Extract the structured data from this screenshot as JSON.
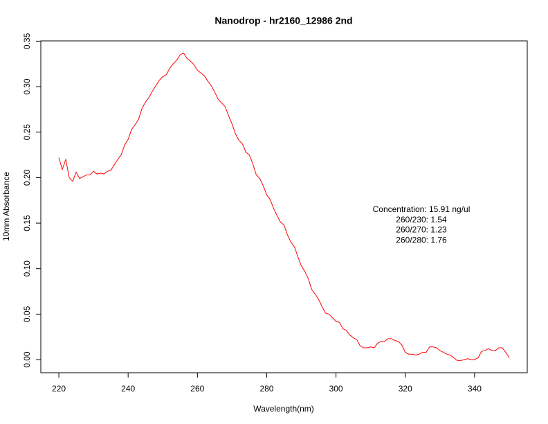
{
  "chart_data": {
    "type": "line",
    "title": "Nanodrop - hr2160_12986 2nd",
    "x_label": "Wavelength(nm)",
    "y_label": "10mm Absorbance",
    "annotation": [
      "Concentration: 15.91 ng/ul",
      "260/230: 1.54",
      "260/270: 1.23",
      "260/280: 1.76"
    ],
    "color": "#ff0000",
    "xlim": [
      214.8,
      355.2
    ],
    "xticks": [
      220,
      240,
      260,
      280,
      300,
      320,
      340
    ],
    "ylim": [
      -0.0144,
      0.3503
    ],
    "yticks": [
      {
        "value": 0,
        "label": "0.00"
      },
      0.05,
      {
        "value": 0.1,
        "label": "0.10"
      },
      0.15,
      {
        "value": 0.2,
        "label": "0.20"
      },
      0.25,
      {
        "value": 0.3,
        "label": "0.30"
      },
      0.35
    ],
    "x": [
      220,
      221,
      222,
      223,
      224,
      225,
      226,
      227,
      228,
      229,
      230,
      231,
      232,
      233,
      234,
      235,
      236,
      237,
      238,
      239,
      240,
      241,
      242,
      243,
      244,
      245,
      246,
      247,
      248,
      249,
      250,
      251,
      252,
      253,
      254,
      255,
      256,
      257,
      258,
      259,
      260,
      261,
      262,
      263,
      264,
      265,
      266,
      267,
      268,
      269,
      270,
      271,
      272,
      273,
      274,
      275,
      276,
      277,
      278,
      279,
      280,
      281,
      282,
      283,
      284,
      285,
      286,
      287,
      288,
      289,
      290,
      291,
      292,
      293,
      294,
      295,
      296,
      297,
      298,
      299,
      300,
      301,
      302,
      303,
      304,
      305,
      306,
      307,
      308,
      309,
      310,
      311,
      312,
      313,
      314,
      315,
      316,
      317,
      318,
      319,
      320,
      321,
      322,
      323,
      324,
      325,
      326,
      327,
      328,
      329,
      330,
      331,
      332,
      333,
      334,
      335,
      336,
      337,
      338,
      339,
      340,
      341,
      342,
      343,
      344,
      345,
      346,
      347,
      348,
      349,
      350
    ],
    "values": [
      0.222,
      0.209,
      0.22,
      0.2,
      0.196,
      0.206,
      0.199,
      0.201,
      0.203,
      0.203,
      0.207,
      0.204,
      0.205,
      0.204,
      0.207,
      0.208,
      0.214,
      0.22,
      0.225,
      0.236,
      0.242,
      0.253,
      0.258,
      0.264,
      0.276,
      0.283,
      0.288,
      0.295,
      0.301,
      0.307,
      0.311,
      0.313,
      0.32,
      0.325,
      0.329,
      0.335,
      0.337,
      0.331,
      0.328,
      0.324,
      0.318,
      0.315,
      0.312,
      0.306,
      0.301,
      0.294,
      0.286,
      0.282,
      0.278,
      0.268,
      0.259,
      0.248,
      0.241,
      0.237,
      0.228,
      0.225,
      0.215,
      0.203,
      0.199,
      0.191,
      0.181,
      0.176,
      0.166,
      0.158,
      0.151,
      0.148,
      0.137,
      0.129,
      0.124,
      0.113,
      0.103,
      0.097,
      0.089,
      0.077,
      0.072,
      0.066,
      0.058,
      0.051,
      0.05,
      0.046,
      0.042,
      0.041,
      0.034,
      0.032,
      0.027,
      0.024,
      0.022,
      0.015,
      0.013,
      0.013,
      0.014,
      0.013,
      0.018,
      0.02,
      0.02,
      0.023,
      0.023,
      0.021,
      0.02,
      0.016,
      0.008,
      0.006,
      0.006,
      0.005,
      0.006,
      0.008,
      0.008,
      0.014,
      0.014,
      0.013,
      0.01,
      0.008,
      0.006,
      0.005,
      0.002,
      -0.001,
      -0.001,
      0.0,
      0.001,
      0.0,
      0.0,
      0.002,
      0.009,
      0.01,
      0.012,
      0.01,
      0.01,
      0.013,
      0.013,
      0.008,
      0.002
    ]
  }
}
